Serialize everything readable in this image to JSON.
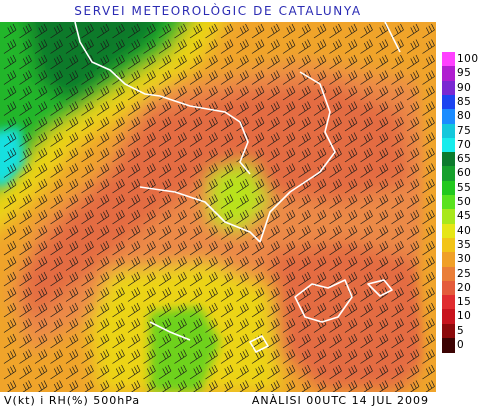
{
  "header": {
    "title": "SERVEI METEOROLÒGIC DE CATALUNYA"
  },
  "footer": {
    "variables": "V(kt) i RH(%) 500hPa",
    "analysis": "ANÀLISI 00UTC 14 JUL 2009"
  },
  "legend": {
    "items": [
      {
        "label": "100",
        "color": "#ff40ff"
      },
      {
        "label": "95",
        "color": "#b01ed0"
      },
      {
        "label": "90",
        "color": "#7a28d2"
      },
      {
        "label": "85",
        "color": "#1c44f0"
      },
      {
        "label": "80",
        "color": "#1c8cff"
      },
      {
        "label": "75",
        "color": "#14c8dc"
      },
      {
        "label": "70",
        "color": "#18ecec"
      },
      {
        "label": "65",
        "color": "#0c7a2c"
      },
      {
        "label": "60",
        "color": "#16a02c"
      },
      {
        "label": "55",
        "color": "#22c81e"
      },
      {
        "label": "50",
        "color": "#5ae21e"
      },
      {
        "label": "45",
        "color": "#a8e81c"
      },
      {
        "label": "40",
        "color": "#e6e616"
      },
      {
        "label": "35",
        "color": "#f2c418"
      },
      {
        "label": "30",
        "color": "#f0a028"
      },
      {
        "label": "25",
        "color": "#ea7e38"
      },
      {
        "label": "20",
        "color": "#e45c3c"
      },
      {
        "label": "15",
        "color": "#e02c30"
      },
      {
        "label": "10",
        "color": "#c8141e"
      },
      {
        "label": "5",
        "color": "#8c0a0c"
      },
      {
        "label": "0",
        "color": "#3c0404"
      }
    ]
  },
  "map_colors": {
    "dark_green": "#0f7a2a",
    "green": "#24b62a",
    "light_green": "#6ed21e",
    "yellow_green": "#b9e21e",
    "yellow": "#ecd418",
    "orange": "#f0a42a",
    "salmon": "#ec8a46",
    "red_orange": "#e46c42",
    "cyan": "#18e0e0",
    "coast": "#ffffff",
    "barb": "#1a1a1a"
  }
}
